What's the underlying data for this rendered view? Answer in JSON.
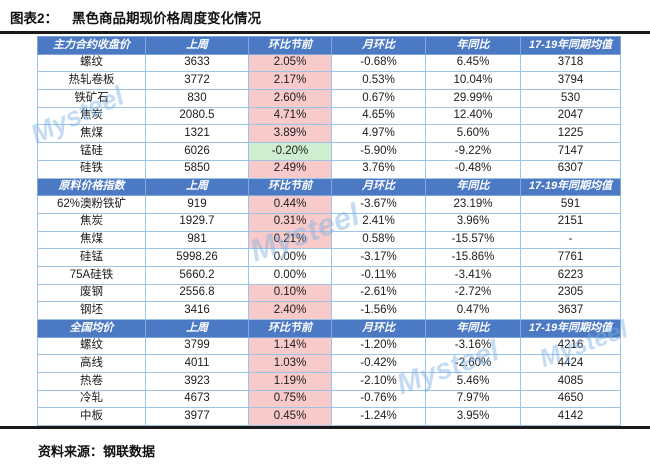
{
  "title": {
    "prefix": "图表2：",
    "text": "黑色商品期现价格周度变化情况"
  },
  "source": "资料来源：钢联数据",
  "watermark": "Mysteel",
  "colors": {
    "header_blue": "#4b79c4",
    "grid_blue": "#9dc3e6",
    "pink_bg": "#f8caca",
    "pink_text": "#e03a3a",
    "green_bg": "#cfeecf",
    "green_text": "#2fa24f",
    "rule_black": "#1a1a1a",
    "watermark_blue": "#7db1e4"
  },
  "columns": [
    "上周",
    "环比节前",
    "月环比",
    "年同比",
    "17-19年同期均值"
  ],
  "sections": [
    {
      "header": "主力合约收盘价",
      "rows": [
        {
          "label": "螺纹",
          "last_week": "3633",
          "wow": "2.05%",
          "hl": "pink",
          "mom": "-0.68%",
          "yoy": "6.45%",
          "avg": "3718"
        },
        {
          "label": "热轧卷板",
          "last_week": "3772",
          "wow": "2.17%",
          "hl": "pink",
          "mom": "0.53%",
          "yoy": "10.04%",
          "avg": "3794"
        },
        {
          "label": "铁矿石",
          "last_week": "830",
          "wow": "2.60%",
          "hl": "pink",
          "mom": "0.67%",
          "yoy": "29.99%",
          "avg": "530"
        },
        {
          "label": "焦炭",
          "last_week": "2080.5",
          "wow": "4.71%",
          "hl": "pink",
          "mom": "4.65%",
          "yoy": "12.40%",
          "avg": "2047"
        },
        {
          "label": "焦煤",
          "last_week": "1321",
          "wow": "3.89%",
          "hl": "pink",
          "mom": "4.97%",
          "yoy": "5.60%",
          "avg": "1225"
        },
        {
          "label": "锰硅",
          "last_week": "6026",
          "wow": "-0.20%",
          "hl": "green",
          "mom": "-5.90%",
          "yoy": "-9.22%",
          "avg": "7147"
        },
        {
          "label": "硅铁",
          "last_week": "5850",
          "wow": "2.49%",
          "hl": "pink",
          "mom": "3.76%",
          "yoy": "-0.48%",
          "avg": "6307"
        }
      ]
    },
    {
      "header": "原料价格指数",
      "rows": [
        {
          "label": "62%澳粉铁矿",
          "last_week": "919",
          "wow": "0.44%",
          "hl": "pink",
          "mom": "-3.67%",
          "yoy": "23.19%",
          "avg": "591"
        },
        {
          "label": "焦炭",
          "last_week": "1929.7",
          "wow": "0.31%",
          "hl": "pink",
          "mom": "2.41%",
          "yoy": "3.96%",
          "avg": "2151"
        },
        {
          "label": "焦煤",
          "last_week": "981",
          "wow": "0.21%",
          "hl": "pink",
          "mom": "0.58%",
          "yoy": "-15.57%",
          "avg": "-"
        },
        {
          "label": "硅锰",
          "last_week": "5998.26",
          "wow": "0.00%",
          "hl": "none",
          "mom": "-3.17%",
          "yoy": "-15.86%",
          "avg": "7761"
        },
        {
          "label": "75A硅铁",
          "last_week": "5660.2",
          "wow": "0.00%",
          "hl": "none",
          "mom": "-0.11%",
          "yoy": "-3.41%",
          "avg": "6223"
        },
        {
          "label": "废钢",
          "last_week": "2556.8",
          "wow": "0.10%",
          "hl": "pink",
          "mom": "-2.61%",
          "yoy": "-2.72%",
          "avg": "2305"
        },
        {
          "label": "钢坯",
          "last_week": "3416",
          "wow": "2.40%",
          "hl": "pink",
          "mom": "-1.56%",
          "yoy": "0.47%",
          "avg": "3637"
        }
      ]
    },
    {
      "header": "全国均价",
      "rows": [
        {
          "label": "螺纹",
          "last_week": "3799",
          "wow": "1.14%",
          "hl": "pink",
          "mom": "-1.20%",
          "yoy": "-3.16%",
          "avg": "4216"
        },
        {
          "label": "高线",
          "last_week": "4011",
          "wow": "1.03%",
          "hl": "pink",
          "mom": "-0.42%",
          "yoy": "-2.60%",
          "avg": "4424"
        },
        {
          "label": "热卷",
          "last_week": "3923",
          "wow": "1.19%",
          "hl": "pink",
          "mom": "-2.10%",
          "yoy": "5.46%",
          "avg": "4085"
        },
        {
          "label": "冷轧",
          "last_week": "4673",
          "wow": "0.75%",
          "hl": "pink",
          "mom": "-0.76%",
          "yoy": "7.97%",
          "avg": "4650"
        },
        {
          "label": "中板",
          "last_week": "3977",
          "wow": "0.45%",
          "hl": "pink",
          "mom": "-1.24%",
          "yoy": "3.95%",
          "avg": "4142"
        }
      ]
    }
  ]
}
